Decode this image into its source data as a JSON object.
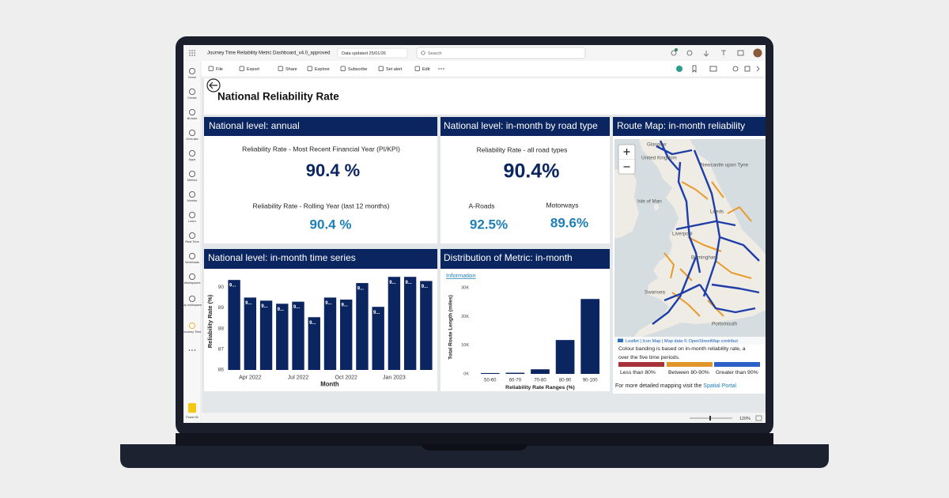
{
  "app": {
    "report_name": "Journey Time Reliability Metric Dashboard_v4.0_approved",
    "data_updated": "Data updated 25/01/26",
    "search_placeholder": "Search",
    "toolbar": [
      "File",
      "Export",
      "Share",
      "Explore",
      "Subscribe",
      "Set alert",
      "Edit"
    ],
    "nav": [
      "Home",
      "Create",
      "Browse",
      "OneLake",
      "Apps",
      "Metrics",
      "Monitor",
      "Learn",
      "Real-Time",
      "Workloads",
      "Workspaces",
      "My workspace",
      "Journey Time"
    ],
    "product": "Power BI",
    "zoom": "120%"
  },
  "page_title": "National Reliability Rate",
  "annual": {
    "header": "National level: annual",
    "kpis": [
      {
        "label": "Reliability Rate - Most Recent Financial Year (PI/KPI)",
        "value": "90.4 %"
      },
      {
        "label": "Reliability Rate - Rolling Year (last 12 months)",
        "value": "90.4 %"
      }
    ]
  },
  "road_type": {
    "header": "National level: in-month by road type",
    "overall": {
      "label": "Reliability Rate - all road types",
      "value": "90.4%"
    },
    "breakdown": [
      {
        "label": "A-Roads",
        "value": "92.5%"
      },
      {
        "label": "Motorways",
        "value": "89.6%"
      }
    ]
  },
  "map": {
    "header": "Route Map: in-month reliability",
    "places": [
      "Glasgow",
      "United Kingdom",
      "Newcastle upon Tyne",
      "Isle of Man",
      "Leeds",
      "Liverpool",
      "Birmingham",
      "Swansea",
      "Portsmouth"
    ],
    "attribution": "Leaflet | Icon Map | Map data © OpenStreetMap contribut",
    "note": [
      "Colour banding is based on in-month reliability rate, a",
      "over the five time periods."
    ],
    "legend": [
      {
        "label": "Less than 80%",
        "color": "#a8323a"
      },
      {
        "label": "Between 80-90%",
        "color": "#e0962a"
      },
      {
        "label": "Greater than 90%",
        "color": "#2c62c8"
      }
    ],
    "more_text": "For more detailed mapping visit the ",
    "more_link": "Spatial Portal"
  },
  "chart_data": [
    {
      "type": "bar",
      "title": "National level: in-month time series",
      "categories": [
        null,
        "Apr 2022",
        null,
        null,
        "Jul 2022",
        null,
        null,
        "Oct 2022",
        null,
        null,
        "Jan 2023",
        null,
        null
      ],
      "values": [
        90.35,
        89.5,
        89.35,
        89.2,
        89.3,
        88.55,
        89.5,
        89.4,
        90.2,
        89.05,
        90.5,
        90.5,
        90.3
      ],
      "value_labels": [
        "9...",
        "9...",
        "9...",
        "9...",
        "9...",
        "9...",
        "9...",
        "9...",
        "9...",
        "9...",
        "9...",
        "9...",
        "9..."
      ],
      "color": "#0b2561",
      "ylim": [
        86,
        90.7
      ],
      "yticks": [
        86,
        87,
        88,
        89,
        90
      ],
      "y_label": "Reliability Rate (%)",
      "x_label": "Month"
    },
    {
      "type": "bar",
      "title": "Distribution of Metric: in-month",
      "link": "Information",
      "categories": [
        "50-60",
        "60-70",
        "70-80",
        "80-90",
        "90-100"
      ],
      "values": [
        300,
        400,
        1600,
        11800,
        26100
      ],
      "color": "#0b2561",
      "ylim": [
        0,
        32500
      ],
      "yticks": [
        {
          "value": 0,
          "label": "0K"
        },
        {
          "value": 10000,
          "label": "10K"
        },
        {
          "value": 20000,
          "label": "20K"
        },
        {
          "value": 30000,
          "label": "30K"
        }
      ],
      "y_label": "Total Route Length (miles)",
      "x_label": "Reliability Rate Ranges (%)"
    }
  ]
}
